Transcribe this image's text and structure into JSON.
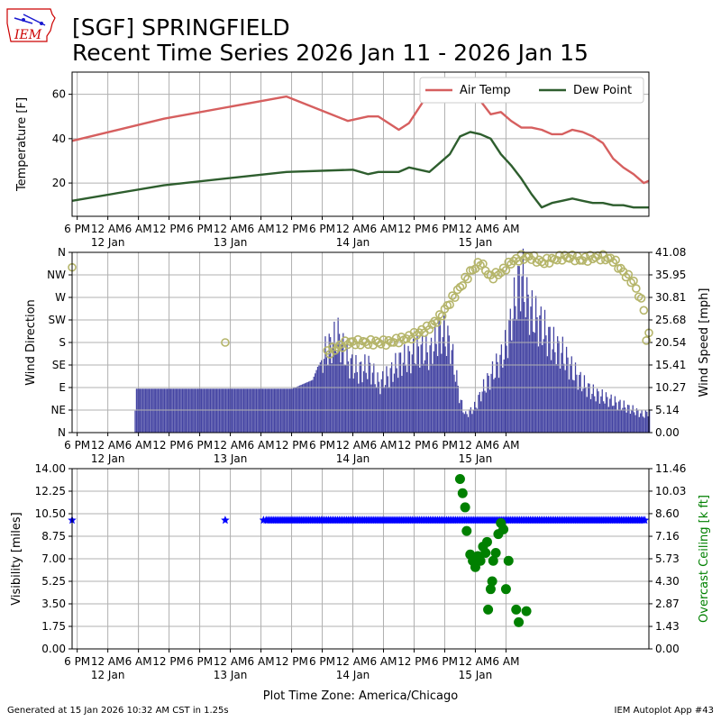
{
  "header": {
    "title_line1": "[SGF] SPRINGFIELD",
    "title_line2": "Recent Time Series 2026 Jan 11 - 2026 Jan 15",
    "logo_text": "IEM"
  },
  "footer": {
    "generated": "Generated at 15 Jan 2026 10:32 AM CST in 1.25s",
    "app": "IEM Autoplot App #43"
  },
  "colors": {
    "air_temp": "#d65f5f",
    "dew_point": "#2e5e2e",
    "wind_bar": "#33339a",
    "wind_dir": "#b5b56a",
    "visibility": "#0000ff",
    "ceiling": "#008000",
    "grid": "#b0b0b0"
  },
  "chart_data": [
    {
      "id": "temperature",
      "type": "line",
      "ylabel": "Temperature [F]",
      "ylim": [
        5,
        70
      ],
      "yticks": [
        20,
        40,
        60
      ],
      "xlim": [
        17,
        130
      ],
      "legend_placement": "top-right",
      "x_unit": "hours since 2026-01-11 00:00 America/Chicago",
      "series": [
        {
          "name": "Air Temp",
          "x": [
            17,
            35,
            59,
            71,
            75,
            77,
            79,
            81,
            83,
            85,
            87,
            89,
            91,
            93,
            95,
            97,
            99,
            101,
            103,
            105,
            106,
            107,
            109,
            111,
            113,
            115,
            117,
            119,
            121,
            123,
            125,
            127,
            129,
            130
          ],
          "y": [
            39,
            49,
            59,
            48,
            50,
            50,
            47,
            44,
            47,
            54,
            61,
            65,
            67,
            66,
            62,
            57,
            51,
            52,
            48,
            45,
            45,
            45,
            44,
            42,
            42,
            44,
            43,
            41,
            38,
            31,
            27,
            24,
            20,
            21
          ]
        },
        {
          "name": "Dew Point",
          "x": [
            17,
            35,
            59,
            72,
            75,
            77,
            79,
            81,
            83,
            85,
            87,
            89,
            91,
            93,
            95,
            97,
            99,
            101,
            103,
            105,
            107,
            109,
            111,
            113,
            115,
            117,
            119,
            121,
            123,
            125,
            127,
            129,
            130
          ],
          "y": [
            12,
            19,
            25,
            26,
            24,
            25,
            25,
            25,
            27,
            26,
            25,
            29,
            33,
            41,
            43,
            42,
            40,
            33,
            28,
            22,
            15,
            9,
            11,
            12,
            13,
            12,
            11,
            11,
            10,
            10,
            9,
            9,
            9
          ]
        }
      ]
    },
    {
      "id": "wind",
      "type": "bar",
      "ylabel": "Wind Direction",
      "y2label": "Wind Speed [mph]",
      "ylim": [
        0,
        360
      ],
      "y2lim": [
        0,
        41.08
      ],
      "direction_ticks": [
        "N",
        "NE",
        "E",
        "SE",
        "S",
        "SW",
        "W",
        "NW",
        "N"
      ],
      "speed_ticks": [
        "0.00",
        "5.14",
        "10.27",
        "15.41",
        "20.54",
        "25.68",
        "30.81",
        "35.95",
        "41.08"
      ],
      "xlim": [
        17,
        130
      ],
      "speed": {
        "x": [
          17,
          29,
          29.5,
          30,
          40,
          50,
          60,
          64,
          65,
          67,
          69,
          71,
          73,
          75,
          77,
          79,
          81,
          83,
          85,
          87,
          89,
          91,
          93,
          94,
          95,
          96,
          97,
          99,
          101,
          102,
          103,
          104,
          105,
          106,
          107,
          109,
          111,
          113,
          115,
          117,
          119,
          121,
          123,
          125,
          127,
          129,
          130
        ],
        "y": [
          0,
          0,
          10,
          10,
          10,
          10,
          10,
          12,
          15,
          19,
          22,
          16,
          14,
          15,
          11,
          13,
          16,
          17,
          19,
          18,
          23,
          20,
          7,
          4,
          5,
          6,
          9,
          13,
          17,
          20,
          26,
          32,
          36,
          30,
          27,
          24,
          20,
          18,
          14,
          11,
          9,
          8,
          7,
          6,
          5,
          4,
          5
        ]
      },
      "direction": {
        "x": [
          17,
          47,
          67,
          69,
          71,
          73,
          75,
          77,
          79,
          81,
          83,
          85,
          87,
          89,
          91,
          93,
          95,
          97,
          99,
          101,
          103,
          105,
          107,
          109,
          111,
          113,
          115,
          117,
          119,
          121,
          123,
          125,
          127,
          129,
          129.5,
          130
        ],
        "y": [
          330,
          180,
          160,
          170,
          180,
          180,
          180,
          180,
          180,
          185,
          190,
          200,
          210,
          230,
          260,
          290,
          320,
          340,
          310,
          320,
          340,
          350,
          350,
          340,
          345,
          350,
          350,
          345,
          350,
          350,
          345,
          320,
          300,
          250,
          180,
          200
        ]
      }
    },
    {
      "id": "visibility",
      "type": "scatter",
      "ylabel": "Visibility [miles]",
      "y2label": "Overcast Ceiling [k ft]",
      "ylim": [
        0,
        14
      ],
      "y2lim": [
        0,
        11.46
      ],
      "vis_ticks": [
        "0.00",
        "1.75",
        "3.50",
        "5.25",
        "7.00",
        "8.75",
        "10.50",
        "12.25",
        "14.00"
      ],
      "ceiling_ticks": [
        "0.00",
        "1.43",
        "2.87",
        "4.30",
        "5.73",
        "7.16",
        "8.60",
        "10.03",
        "11.46"
      ],
      "xlim": [
        17,
        130
      ],
      "visibility": {
        "x": [
          17,
          47,
          54.5
        ],
        "y": [
          10,
          10,
          10
        ],
        "continuous_from": 55,
        "continuous_to": 129.5,
        "continuous_value": 10
      },
      "ceiling": {
        "x": [
          93,
          93.5,
          94,
          94.3,
          95,
          95.5,
          96,
          96.5,
          97,
          97.5,
          98,
          98.3,
          98.5,
          99,
          99.3,
          99.5,
          100,
          100.5,
          101,
          101.5,
          102,
          102.5,
          104,
          104.5,
          106
        ],
        "y": [
          10.8,
          9.9,
          9.0,
          7.5,
          6.0,
          5.6,
          5.2,
          5.9,
          5.6,
          6.5,
          6.1,
          6.8,
          2.5,
          3.8,
          4.3,
          5.6,
          6.1,
          7.3,
          8.0,
          7.6,
          3.8,
          5.6,
          2.5,
          1.7,
          2.4
        ]
      }
    }
  ],
  "x_axis": {
    "label": "Plot Time Zone: America/Chicago",
    "ticks": [
      {
        "h": 18,
        "label": "6 PM",
        "day": ""
      },
      {
        "h": 24,
        "label": "12 AM",
        "day": "12 Jan"
      },
      {
        "h": 30,
        "label": "6 AM",
        "day": ""
      },
      {
        "h": 36,
        "label": "12 PM",
        "day": ""
      },
      {
        "h": 42,
        "label": "6 PM",
        "day": ""
      },
      {
        "h": 48,
        "label": "12 AM",
        "day": "13 Jan"
      },
      {
        "h": 54,
        "label": "6 AM",
        "day": ""
      },
      {
        "h": 60,
        "label": "12 PM",
        "day": ""
      },
      {
        "h": 66,
        "label": "6 PM",
        "day": ""
      },
      {
        "h": 72,
        "label": "12 AM",
        "day": "14 Jan"
      },
      {
        "h": 78,
        "label": "6 AM",
        "day": ""
      },
      {
        "h": 84,
        "label": "12 PM",
        "day": ""
      },
      {
        "h": 90,
        "label": "6 PM",
        "day": ""
      },
      {
        "h": 96,
        "label": "12 AM",
        "day": "15 Jan"
      },
      {
        "h": 102,
        "label": "6 AM",
        "day": ""
      }
    ]
  }
}
